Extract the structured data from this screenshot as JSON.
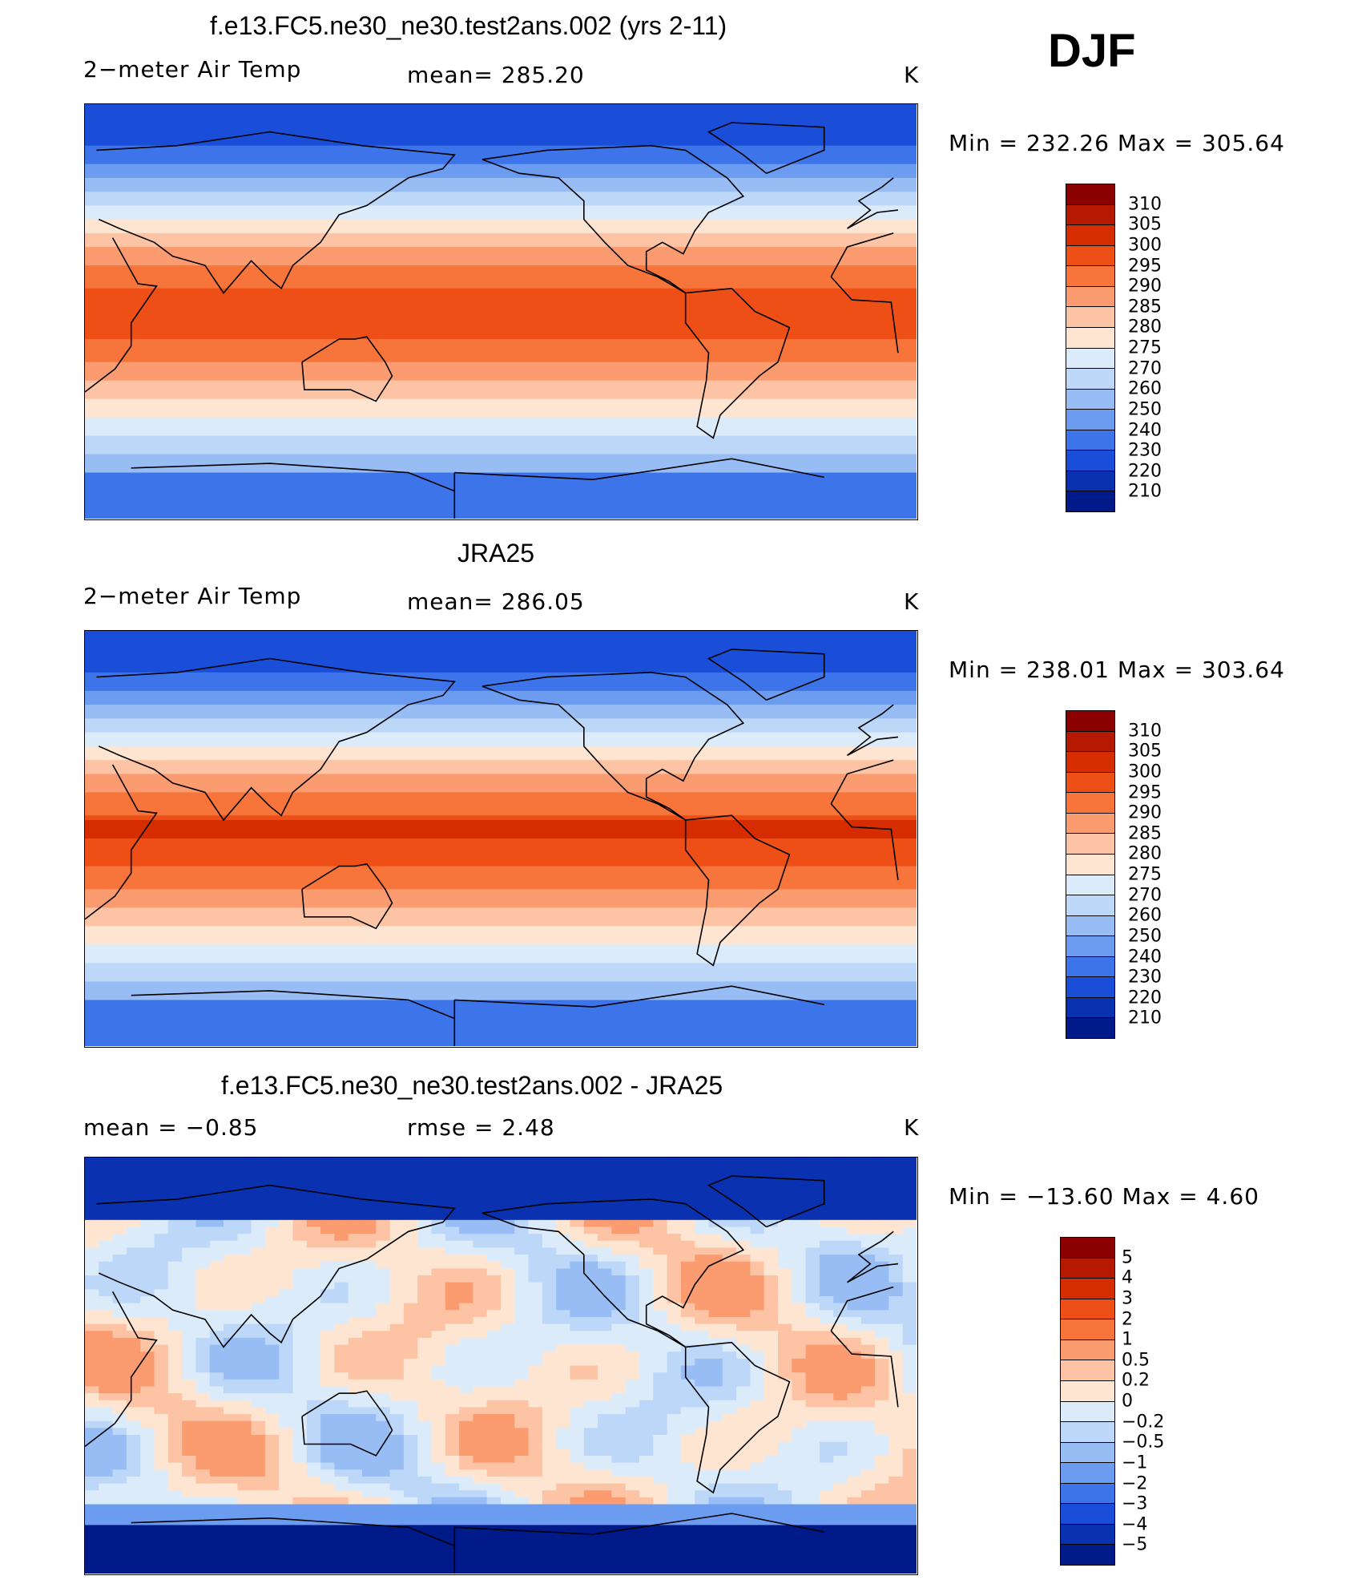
{
  "season": "DJF",
  "panels": [
    {
      "title": "f.e13.FC5.ne30_ne30.test2ans.002 (yrs 2-11)",
      "left": "2−meter Air Temp",
      "center": "mean=  285.20",
      "right": "K",
      "minmax": "Min  =  232.26  Max  =  305.64",
      "field": "model"
    },
    {
      "title": "JRA25",
      "left": "2−meter Air Temp",
      "center": "mean=  286.05",
      "right": "K",
      "minmax": "Min  =  238.01  Max  =  303.64",
      "field": "obs"
    },
    {
      "title": "f.e13.FC5.ne30_ne30.test2ans.002 - JRA25",
      "left": "mean  =     −0.85",
      "center": "rmse  =     2.48",
      "right": "K",
      "minmax": "Min  =  −13.60  Max  =     4.60",
      "field": "diff"
    }
  ],
  "temp_colorbar": {
    "labels": [
      "310",
      "305",
      "300",
      "295",
      "290",
      "285",
      "280",
      "275",
      "270",
      "260",
      "250",
      "240",
      "230",
      "220",
      "210"
    ],
    "colors": [
      "#8b0000",
      "#b51a00",
      "#d62d00",
      "#ee4f16",
      "#f7743a",
      "#fb9b70",
      "#fcc4a4",
      "#fde5d2",
      "#dcebfa",
      "#bcd7f7",
      "#98bdf4",
      "#6c9cef",
      "#3d74ea",
      "#1a4ed8",
      "#0a31b0",
      "#001a8a"
    ]
  },
  "diff_colorbar": {
    "labels": [
      "5",
      "4",
      "3",
      "2",
      "1",
      "0.5",
      "0.2",
      "0",
      "−0.2",
      "−0.5",
      "−1",
      "−2",
      "−3",
      "−4",
      "−5"
    ],
    "colors": [
      "#8b0000",
      "#b51a00",
      "#d62d00",
      "#ee4f16",
      "#f7743a",
      "#fb9b70",
      "#fcc4a4",
      "#fde5d2",
      "#dcebfa",
      "#bcd7f7",
      "#98bdf4",
      "#6c9cef",
      "#3d74ea",
      "#1a4ed8",
      "#0a31b0",
      "#001a8a"
    ]
  }
}
